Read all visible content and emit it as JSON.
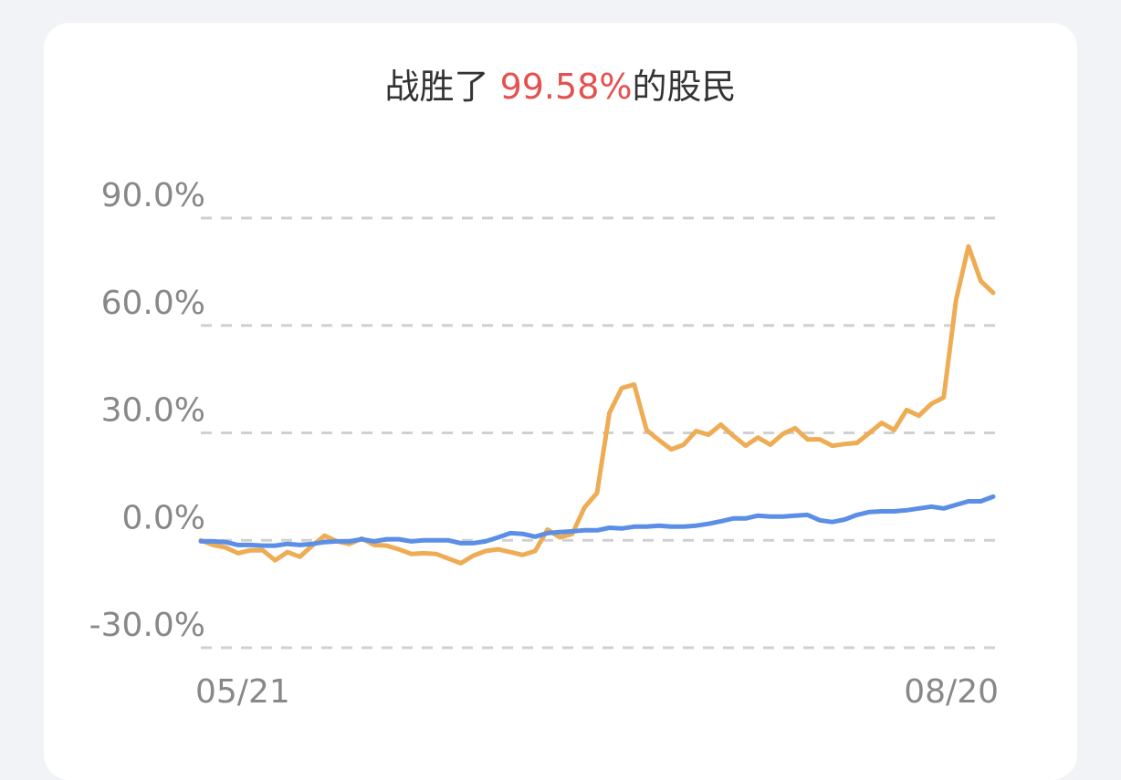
{
  "chart_data": {
    "type": "line",
    "title": {
      "prefix": "战胜了 ",
      "highlight": "99.58%",
      "suffix": "的股民"
    },
    "categories": [
      "05/21",
      null,
      null,
      null,
      null,
      null,
      null,
      null,
      null,
      null,
      null,
      null,
      null,
      null,
      null,
      null,
      null,
      null,
      null,
      null,
      null,
      null,
      null,
      null,
      null,
      null,
      null,
      null,
      null,
      null,
      null,
      null,
      null,
      null,
      null,
      null,
      null,
      null,
      null,
      null,
      null,
      null,
      null,
      null,
      null,
      null,
      null,
      null,
      null,
      null,
      null,
      null,
      null,
      null,
      null,
      null,
      null,
      null,
      null,
      null,
      null,
      null,
      null,
      null,
      "08/20"
    ],
    "series": [
      {
        "color": "#eeac54",
        "values": [
          0,
          -1.3,
          -2.0,
          -3.6,
          -2.8,
          -2.8,
          -5.6,
          -3.3,
          -4.6,
          -1.5,
          1.3,
          -0.3,
          -1.0,
          0.5,
          -1.3,
          -1.5,
          -2.5,
          -3.8,
          -3.6,
          -3.8,
          -5.1,
          -6.4,
          -4.3,
          -3.0,
          -2.5,
          -3.3,
          -4.1,
          -3.0,
          3.0,
          0.8,
          1.8,
          9.2,
          13.2,
          35.6,
          42.5,
          43.5,
          30.8,
          28.0,
          25.4,
          26.7,
          30.5,
          29.5,
          32.3,
          29.2,
          26.4,
          28.7,
          26.7,
          29.7,
          31.3,
          28.2,
          28.2,
          26.4,
          26.9,
          27.2,
          30.0,
          32.8,
          30.8,
          36.4,
          34.8,
          38.1,
          39.9,
          67.1,
          82.1,
          72.4,
          69.1
        ]
      },
      {
        "color": "#5b8ee6",
        "values": [
          -0.3,
          -0.3,
          -0.5,
          -1.3,
          -1.3,
          -1.5,
          -1.5,
          -1.0,
          -1.3,
          -1.0,
          -0.5,
          -0.3,
          -0.3,
          0.3,
          -0.3,
          0.3,
          0.3,
          -0.3,
          0.0,
          0.0,
          0.0,
          -0.8,
          -0.8,
          -0.3,
          0.8,
          2.0,
          1.8,
          1.0,
          2.0,
          2.3,
          2.5,
          2.8,
          2.8,
          3.5,
          3.3,
          3.8,
          3.8,
          4.1,
          3.8,
          3.8,
          4.1,
          4.6,
          5.3,
          6.1,
          6.1,
          6.9,
          6.6,
          6.6,
          6.9,
          7.1,
          5.6,
          5.1,
          5.8,
          7.1,
          7.9,
          8.1,
          8.1,
          8.4,
          8.9,
          9.4,
          8.9,
          9.9,
          10.9,
          10.9,
          12.2
        ]
      }
    ],
    "ylim": [
      -30,
      90
    ],
    "yticks": [
      {
        "value": -30,
        "label": "-30.0%"
      },
      {
        "value": 0,
        "label": "0.0%"
      },
      {
        "value": 30,
        "label": "30.0%"
      },
      {
        "value": 60,
        "label": "60.0%"
      },
      {
        "value": 90,
        "label": "90.0%"
      }
    ],
    "grid": true
  }
}
